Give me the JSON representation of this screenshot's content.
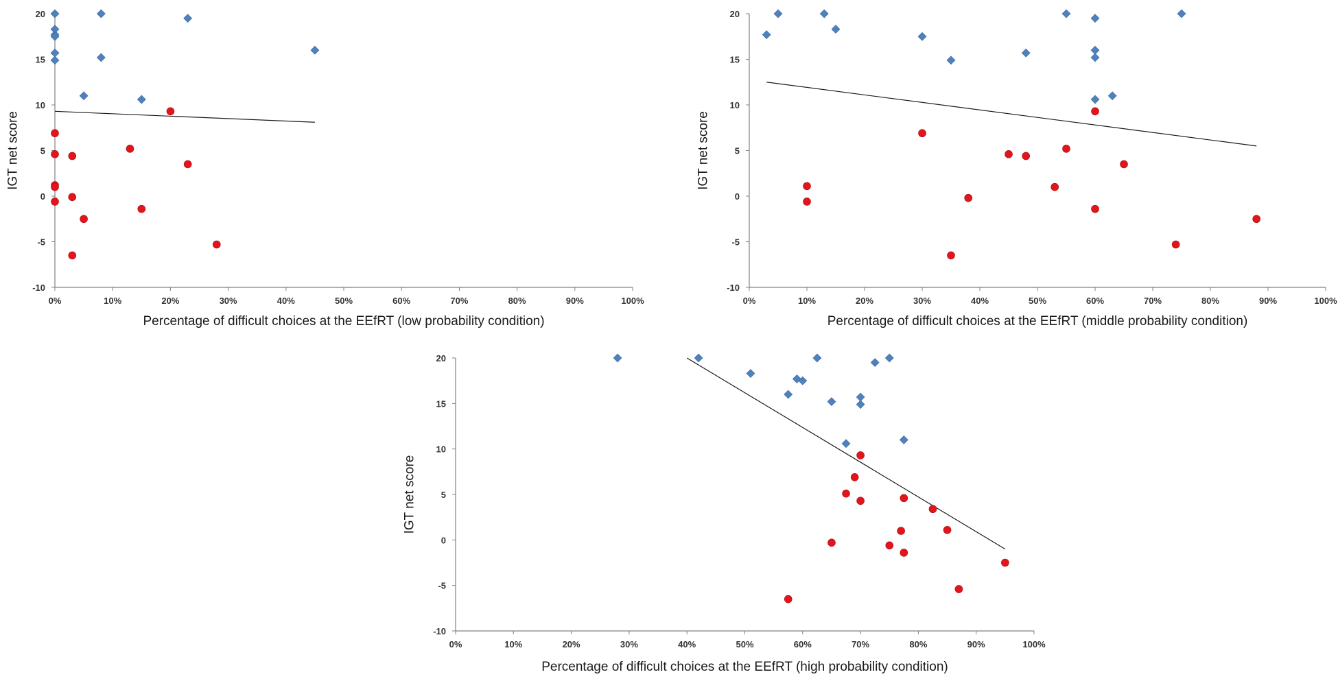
{
  "colors": {
    "diamond": "#4F81BD",
    "circle": "#E3141C",
    "axis": "#808080",
    "trend": "#1a1a1a"
  },
  "chart_data": [
    {
      "type": "scatter",
      "xlabel": "Percentage of difficult choices at the EEfRT (low probability condition)",
      "ylabel": "IGT net score",
      "xlim": [
        0,
        100
      ],
      "ylim": [
        -10,
        20
      ],
      "xticks": [
        "0%",
        "10%",
        "20%",
        "30%",
        "40%",
        "50%",
        "60%",
        "70%",
        "80%",
        "90%",
        "100%"
      ],
      "yticks": [
        "-10",
        "-5",
        "0",
        "5",
        "10",
        "15",
        "20"
      ],
      "series": [
        {
          "name": "diamonds",
          "marker": "diamond",
          "points": [
            [
              0,
              20
            ],
            [
              0,
              18.3
            ],
            [
              0,
              17.7
            ],
            [
              0,
              17.5
            ],
            [
              0,
              15.7
            ],
            [
              0,
              14.9
            ],
            [
              8,
              20
            ],
            [
              8,
              15.2
            ],
            [
              23,
              19.5
            ],
            [
              45,
              16
            ],
            [
              5,
              11
            ],
            [
              15,
              10.6
            ]
          ]
        },
        {
          "name": "circles",
          "marker": "circle",
          "points": [
            [
              0,
              6.9
            ],
            [
              0,
              4.6
            ],
            [
              0,
              1.2
            ],
            [
              0,
              1
            ],
            [
              0,
              -0.6
            ],
            [
              3,
              4.4
            ],
            [
              3,
              -0.1
            ],
            [
              3,
              -6.5
            ],
            [
              5,
              -2.5
            ],
            [
              13,
              5.2
            ],
            [
              15,
              -1.4
            ],
            [
              20,
              9.3
            ],
            [
              23,
              3.5
            ],
            [
              28,
              -5.3
            ]
          ]
        }
      ],
      "trendline": [
        [
          0,
          9.3
        ],
        [
          45,
          8.1
        ]
      ]
    },
    {
      "type": "scatter",
      "xlabel": "Percentage of difficult choices at the EEfRT (middle probability condition)",
      "ylabel": "IGT net score",
      "xlim": [
        0,
        100
      ],
      "ylim": [
        -10,
        20
      ],
      "xticks": [
        "0%",
        "10%",
        "20%",
        "30%",
        "40%",
        "50%",
        "60%",
        "70%",
        "80%",
        "90%",
        "100%"
      ],
      "yticks": [
        "-10",
        "-5",
        "0",
        "5",
        "10",
        "15",
        "20"
      ],
      "series": [
        {
          "name": "diamonds",
          "marker": "diamond",
          "points": [
            [
              3,
              17.7
            ],
            [
              5,
              20
            ],
            [
              13,
              20
            ],
            [
              15,
              18.3
            ],
            [
              30,
              17.5
            ],
            [
              35,
              14.9
            ],
            [
              48,
              15.7
            ],
            [
              55,
              20
            ],
            [
              60,
              19.5
            ],
            [
              60,
              16
            ],
            [
              60,
              15.2
            ],
            [
              60,
              10.6
            ],
            [
              63,
              11
            ],
            [
              75,
              20
            ]
          ]
        },
        {
          "name": "circles",
          "marker": "circle",
          "points": [
            [
              10,
              1.1
            ],
            [
              10,
              -0.6
            ],
            [
              30,
              6.9
            ],
            [
              35,
              -6.5
            ],
            [
              38,
              -0.2
            ],
            [
              45,
              4.6
            ],
            [
              48,
              4.4
            ],
            [
              53,
              1
            ],
            [
              55,
              5.2
            ],
            [
              60,
              9.3
            ],
            [
              60,
              -1.4
            ],
            [
              65,
              3.5
            ],
            [
              74,
              -5.3
            ],
            [
              88,
              -2.5
            ]
          ]
        }
      ],
      "trendline": [
        [
          3,
          12.5
        ],
        [
          88,
          5.5
        ]
      ]
    },
    {
      "type": "scatter",
      "xlabel": "Percentage of difficult choices at the EEfRT (high probability condition)",
      "ylabel": "IGT net score",
      "xlim": [
        0,
        100
      ],
      "ylim": [
        -10,
        20
      ],
      "xticks": [
        "0%",
        "10%",
        "20%",
        "30%",
        "40%",
        "50%",
        "60%",
        "70%",
        "80%",
        "90%",
        "100%"
      ],
      "yticks": [
        "-10",
        "-5",
        "0",
        "5",
        "10",
        "15",
        "20"
      ],
      "series": [
        {
          "name": "diamonds",
          "marker": "diamond",
          "points": [
            [
              28,
              20
            ],
            [
              42,
              20
            ],
            [
              51,
              18.3
            ],
            [
              57.5,
              16
            ],
            [
              59,
              17.7
            ],
            [
              60,
              17.5
            ],
            [
              62.5,
              20
            ],
            [
              65,
              15.2
            ],
            [
              67.5,
              10.6
            ],
            [
              70,
              15.7
            ],
            [
              70,
              14.9
            ],
            [
              72.5,
              19.5
            ],
            [
              75,
              20
            ],
            [
              77.5,
              11
            ]
          ]
        },
        {
          "name": "circles",
          "marker": "circle",
          "points": [
            [
              57.5,
              -6.5
            ],
            [
              65,
              -0.3
            ],
            [
              67.5,
              5.1
            ],
            [
              69,
              6.9
            ],
            [
              70,
              9.3
            ],
            [
              70,
              4.3
            ],
            [
              75,
              -0.6
            ],
            [
              77,
              1
            ],
            [
              77.5,
              4.6
            ],
            [
              77.5,
              -1.4
            ],
            [
              82.5,
              3.4
            ],
            [
              85,
              1.1
            ],
            [
              87,
              -5.4
            ],
            [
              95,
              -2.5
            ]
          ]
        }
      ],
      "trendline": [
        [
          40,
          20
        ],
        [
          95,
          -1
        ]
      ]
    }
  ]
}
